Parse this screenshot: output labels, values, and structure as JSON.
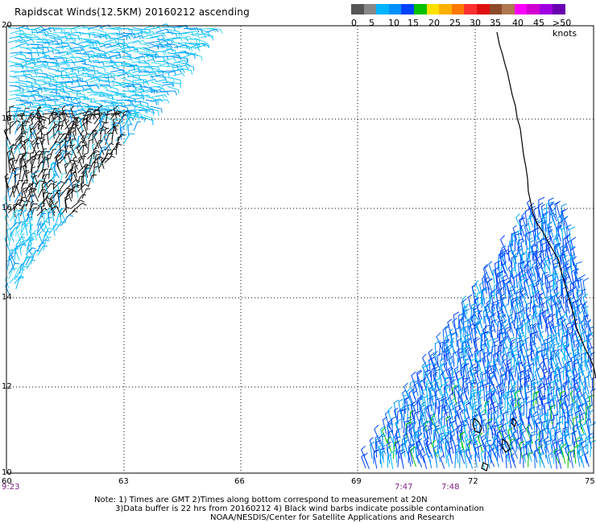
{
  "title": "Rapidscat Winds(12.5KM) 20160212 ascending",
  "legend": {
    "colors": [
      "#555555",
      "#888888",
      "#00b4ff",
      "#0090ff",
      "#0040ff",
      "#00c000",
      "#ffe000",
      "#ffb000",
      "#ff7800",
      "#ff3030",
      "#e01010",
      "#8c4a2a",
      "#b07850",
      "#ff00ff",
      "#d000d0",
      "#a000e0",
      "#6a00b0"
    ],
    "labels": [
      "0",
      "5",
      "10",
      "15",
      "20",
      "25",
      "30",
      "35",
      "40",
      "45",
      ">50 knots"
    ]
  },
  "axes": {
    "lat_labels": [
      "20",
      "18",
      "16",
      "14",
      "12",
      "10"
    ],
    "lon_labels": [
      "60",
      "63",
      "66",
      "69",
      "72",
      "75"
    ]
  },
  "time_labels": [
    "9:23",
    "7:47",
    "7:48"
  ],
  "notes": {
    "line1": "Note: 1) Times are GMT 2)Times along bottom correspond to measurement at 20N",
    "line2": "3)Data buffer is 22 hrs from 20160212 4) Black wind barbs indicate possible contamination",
    "line3": "NOAA/NESDIS/Center for Satellite Applications and Research"
  }
}
